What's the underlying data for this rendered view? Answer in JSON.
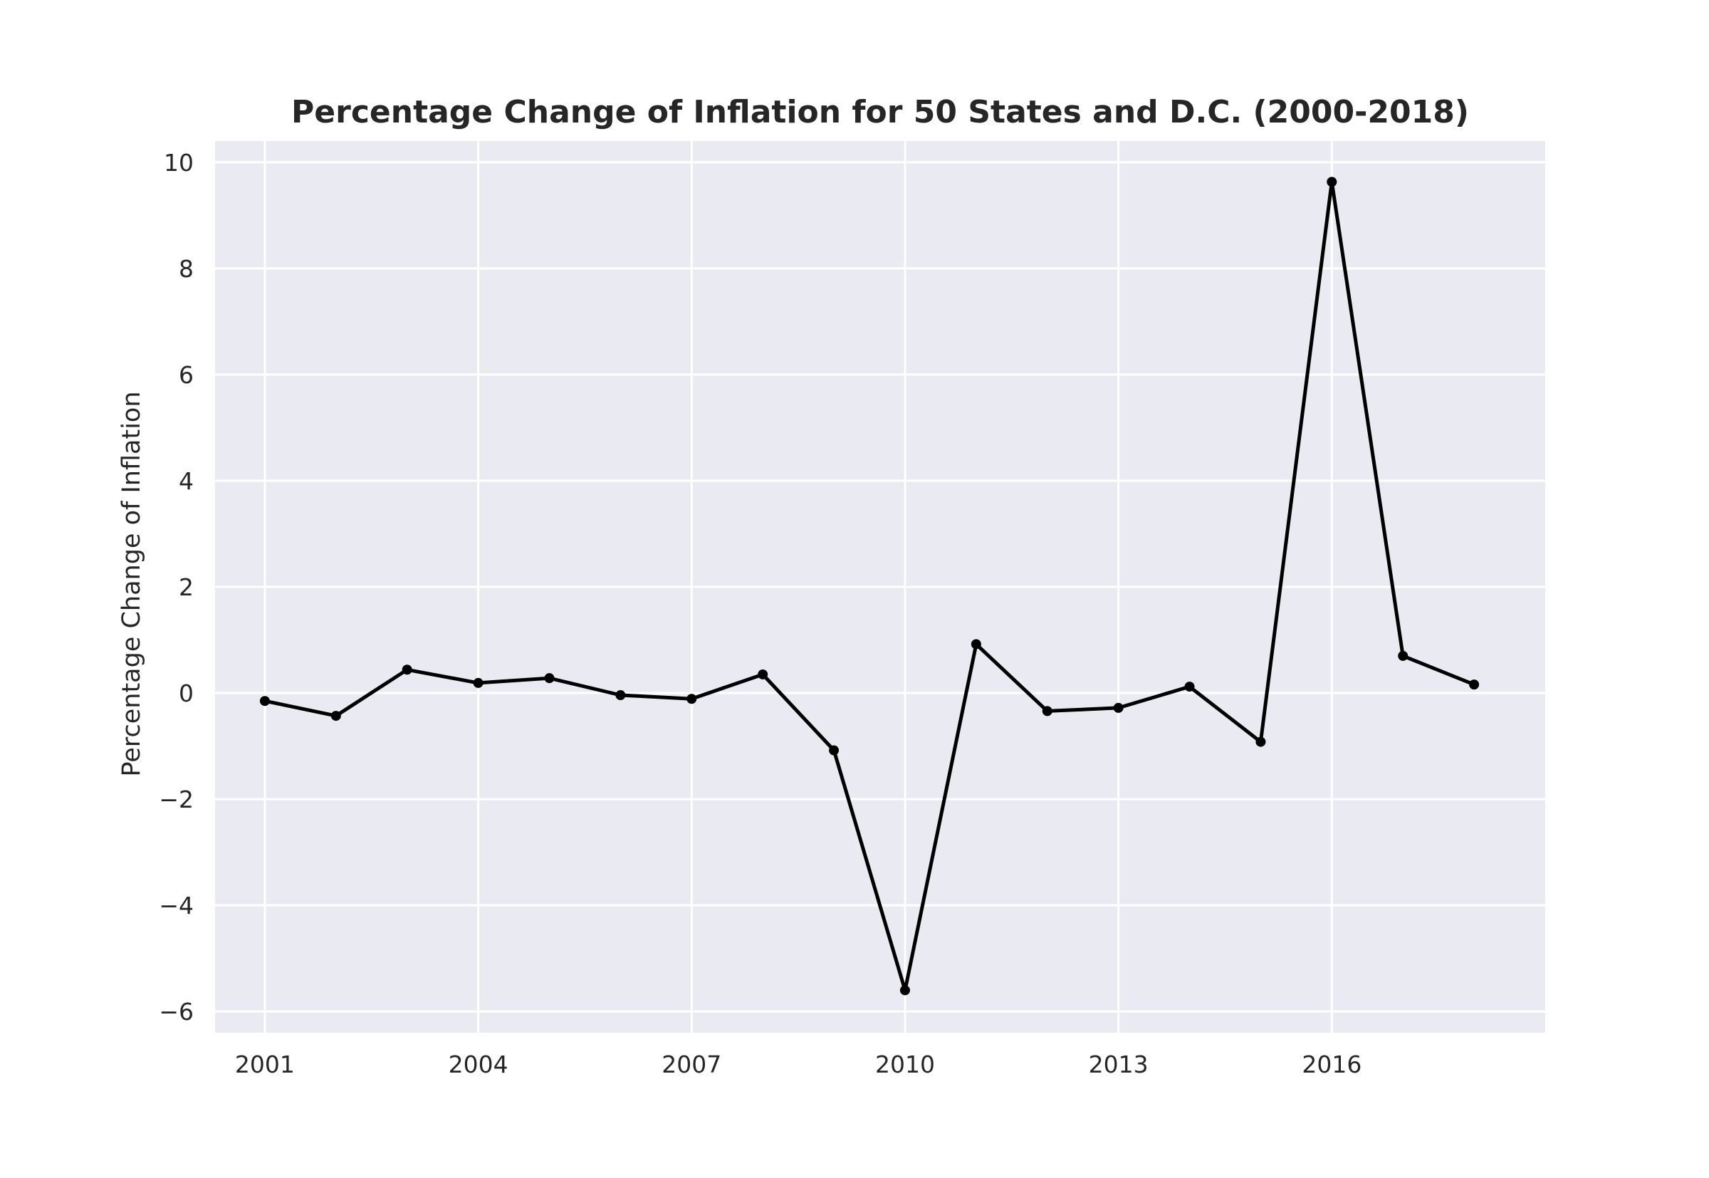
{
  "chart_data": {
    "type": "line",
    "title": "Percentage Change of Inflation for 50 States and D.C. (2000-2018)",
    "xlabel": "",
    "ylabel": "Percentage Change of Inflation",
    "xlim": [
      2000.3,
      2019.0
    ],
    "ylim": [
      -6.4,
      10.4
    ],
    "xticks": [
      2001,
      2004,
      2007,
      2010,
      2013,
      2016
    ],
    "xtick_labels": [
      "2001",
      "2004",
      "2007",
      "2010",
      "2013",
      "2016"
    ],
    "yticks": [
      -6,
      -4,
      -2,
      0,
      2,
      4,
      6,
      8,
      10
    ],
    "ytick_labels": [
      "−6",
      "−4",
      "−2",
      "0",
      "2",
      "4",
      "6",
      "8",
      "10"
    ],
    "grid": true,
    "background": "#eaeaf2",
    "grid_color": "#ffffff",
    "line_color": "#000000",
    "series": [
      {
        "x": [
          2001,
          2002,
          2003,
          2004,
          2005,
          2006,
          2007,
          2008,
          2009,
          2010,
          2011,
          2012,
          2013,
          2014,
          2015,
          2016,
          2017,
          2018
        ],
        "values": [
          -0.15,
          -0.43,
          0.44,
          0.19,
          0.28,
          -0.04,
          -0.11,
          0.35,
          -1.08,
          -5.6,
          0.92,
          -0.34,
          -0.28,
          0.12,
          -0.92,
          9.63,
          0.7,
          0.16
        ]
      }
    ]
  }
}
